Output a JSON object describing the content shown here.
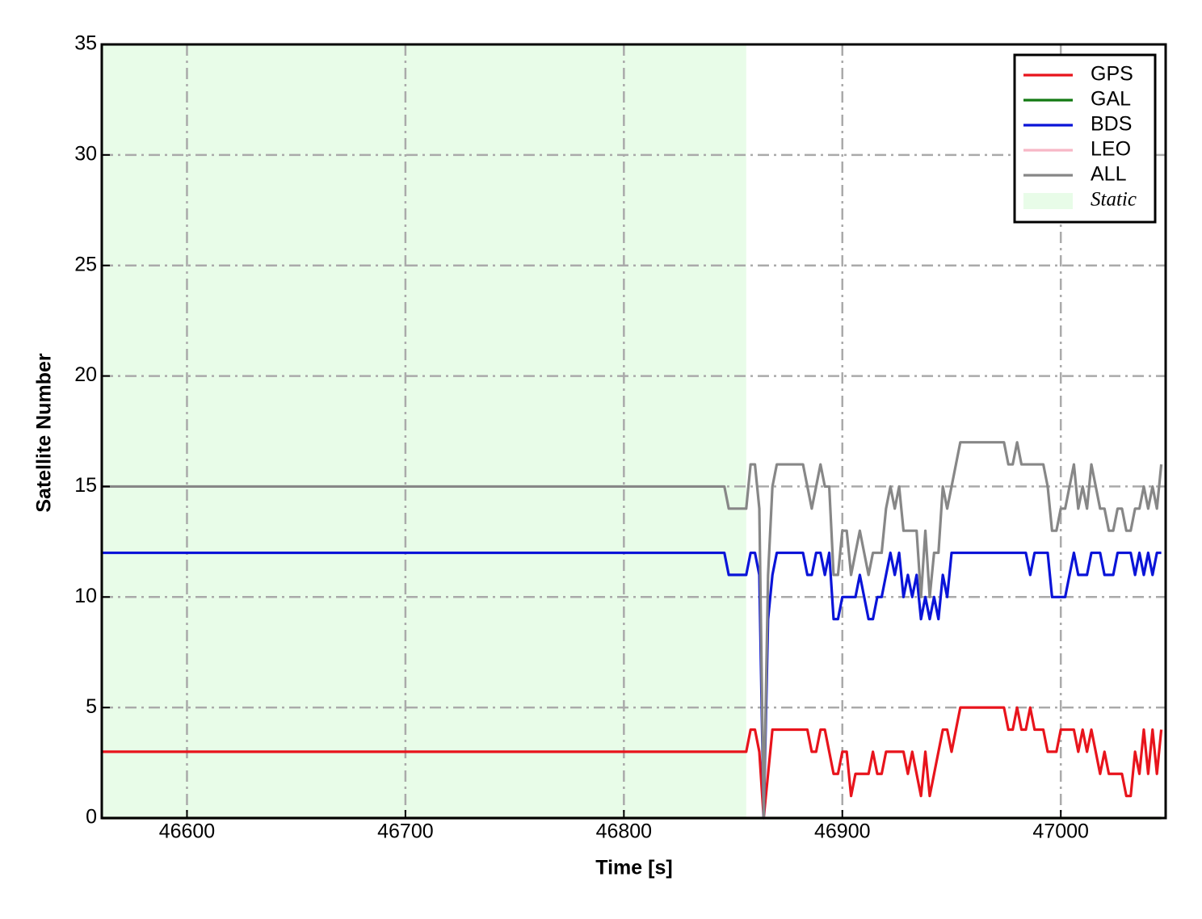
{
  "chart_data": {
    "type": "line",
    "xlabel": "Time [s]",
    "ylabel": "Satellite Number",
    "xlim": [
      46561,
      47048
    ],
    "ylim": [
      0,
      35
    ],
    "xticks": [
      46600,
      46700,
      46800,
      46900,
      47000
    ],
    "yticks": [
      0,
      5,
      10,
      15,
      20,
      25,
      30,
      35
    ],
    "grid": true,
    "legend": "upper right",
    "shaded": {
      "label": "Static",
      "xrange": [
        46561,
        46856
      ],
      "color": "#e8fce8"
    },
    "x": [
      46561,
      46846,
      46848,
      46850,
      46852,
      46854,
      46856,
      46858,
      46860,
      46862,
      46864,
      46866,
      46868,
      46870,
      46872,
      46874,
      46876,
      46878,
      46880,
      46882,
      46884,
      46886,
      46888,
      46890,
      46892,
      46894,
      46896,
      46898,
      46900,
      46902,
      46904,
      46906,
      46908,
      46910,
      46912,
      46914,
      46916,
      46918,
      46920,
      46922,
      46924,
      46926,
      46928,
      46930,
      46932,
      46934,
      46936,
      46938,
      46940,
      46942,
      46944,
      46946,
      46948,
      46950,
      46952,
      46954,
      46956,
      46958,
      46960,
      46962,
      46964,
      46966,
      46968,
      46970,
      46972,
      46974,
      46976,
      46978,
      46980,
      46982,
      46984,
      46986,
      46988,
      46990,
      46992,
      46994,
      46996,
      46998,
      47000,
      47002,
      47004,
      47006,
      47008,
      47010,
      47012,
      47014,
      47016,
      47018,
      47020,
      47022,
      47024,
      47026,
      47028,
      47030,
      47032,
      47034,
      47036,
      47038,
      47040,
      47042,
      47044,
      47046
    ],
    "series": [
      {
        "name": "GPS",
        "color": "#e8141c",
        "values": [
          3,
          3,
          3,
          3,
          3,
          3,
          3,
          4,
          4,
          3,
          0,
          2,
          4,
          4,
          4,
          4,
          4,
          4,
          4,
          4,
          4,
          3,
          3,
          4,
          4,
          3,
          2,
          2,
          3,
          3,
          1,
          2,
          2,
          2,
          2,
          3,
          2,
          2,
          3,
          3,
          3,
          3,
          3,
          2,
          3,
          2,
          1,
          3,
          1,
          2,
          3,
          4,
          4,
          3,
          4,
          5,
          5,
          5,
          5,
          5,
          5,
          5,
          5,
          5,
          5,
          5,
          4,
          4,
          5,
          4,
          4,
          5,
          4,
          4,
          4,
          3,
          3,
          3,
          4,
          4,
          4,
          4,
          3,
          4,
          3,
          4,
          3,
          2,
          3,
          2,
          2,
          2,
          2,
          1,
          1,
          3,
          2,
          4,
          2,
          4,
          2,
          4
        ]
      },
      {
        "name": "GAL",
        "color": "#137a13",
        "values": [
          0,
          0,
          0,
          0,
          0,
          0,
          0,
          0,
          0,
          0,
          0,
          0,
          0,
          0,
          0,
          0,
          0,
          0,
          0,
          0,
          0,
          0,
          0,
          0,
          0,
          0,
          0,
          0,
          0,
          0,
          0,
          0,
          0,
          0,
          0,
          0,
          0,
          0,
          0,
          0,
          0,
          0,
          0,
          0,
          0,
          0,
          0,
          0,
          0,
          0,
          0,
          0,
          0,
          0,
          0,
          0,
          0,
          0,
          0,
          0,
          0,
          0,
          0,
          0,
          0,
          0,
          0,
          0,
          0,
          0,
          0,
          0,
          0,
          0,
          0,
          0,
          0,
          0,
          0,
          0,
          0,
          0,
          0,
          0,
          0,
          0,
          0,
          0,
          0,
          0,
          0,
          0,
          0,
          0,
          0,
          0,
          0,
          0,
          0,
          0,
          0,
          0
        ]
      },
      {
        "name": "BDS",
        "color": "#0a14d8",
        "values": [
          12,
          12,
          11,
          11,
          11,
          11,
          11,
          12,
          12,
          11,
          0,
          9,
          11,
          12,
          12,
          12,
          12,
          12,
          12,
          12,
          11,
          11,
          12,
          12,
          11,
          12,
          9,
          9,
          10,
          10,
          10,
          10,
          11,
          10,
          9,
          9,
          10,
          10,
          11,
          12,
          11,
          12,
          10,
          11,
          10,
          11,
          9,
          10,
          9,
          10,
          9,
          11,
          10,
          12,
          12,
          12,
          12,
          12,
          12,
          12,
          12,
          12,
          12,
          12,
          12,
          12,
          12,
          12,
          12,
          12,
          12,
          11,
          12,
          12,
          12,
          12,
          10,
          10,
          10,
          10,
          11,
          12,
          11,
          11,
          11,
          12,
          12,
          12,
          11,
          11,
          11,
          12,
          12,
          12,
          12,
          11,
          12,
          11,
          12,
          11,
          12,
          12
        ]
      },
      {
        "name": "LEO",
        "color": "#f7b8c6",
        "values": [
          0,
          0,
          0,
          0,
          0,
          0,
          0,
          0,
          0,
          0,
          0,
          0,
          0,
          0,
          0,
          0,
          0,
          0,
          0,
          0,
          0,
          0,
          0,
          0,
          0,
          0,
          0,
          0,
          0,
          0,
          0,
          0,
          0,
          0,
          0,
          0,
          0,
          0,
          0,
          0,
          0,
          0,
          0,
          0,
          0,
          0,
          0,
          0,
          0,
          0,
          0,
          0,
          0,
          0,
          0,
          0,
          0,
          0,
          0,
          0,
          0,
          0,
          0,
          0,
          0,
          0,
          0,
          0,
          0,
          0,
          0,
          0,
          0,
          0,
          0,
          0,
          0,
          0,
          0,
          0,
          0,
          0,
          0,
          0,
          0,
          0,
          0,
          0,
          0,
          0,
          0,
          0,
          0,
          0,
          0,
          0,
          0,
          0,
          0,
          0,
          0,
          0
        ]
      },
      {
        "name": "ALL",
        "color": "#878787",
        "values": [
          15,
          15,
          14,
          14,
          14,
          14,
          14,
          16,
          16,
          14,
          0,
          11,
          15,
          16,
          16,
          16,
          16,
          16,
          16,
          16,
          15,
          14,
          15,
          16,
          15,
          15,
          11,
          11,
          13,
          13,
          11,
          12,
          13,
          12,
          11,
          12,
          12,
          12,
          14,
          15,
          14,
          15,
          13,
          13,
          13,
          13,
          10,
          13,
          10,
          12,
          12,
          15,
          14,
          15,
          16,
          17,
          17,
          17,
          17,
          17,
          17,
          17,
          17,
          17,
          17,
          17,
          16,
          16,
          17,
          16,
          16,
          16,
          16,
          16,
          16,
          15,
          13,
          13,
          14,
          14,
          15,
          16,
          14,
          15,
          14,
          16,
          15,
          14,
          14,
          13,
          13,
          14,
          14,
          13,
          13,
          14,
          14,
          15,
          14,
          15,
          14,
          16
        ]
      }
    ]
  }
}
